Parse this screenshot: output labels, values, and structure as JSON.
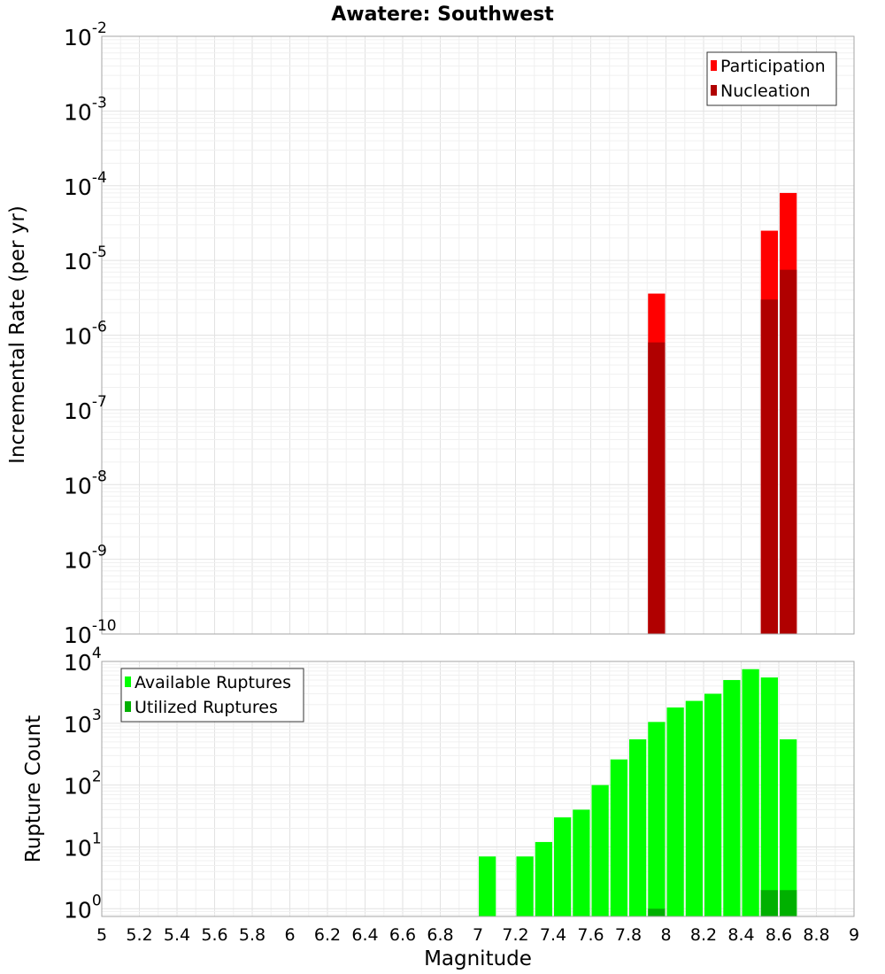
{
  "chart_data": [
    {
      "type": "bar",
      "title": "Awatere: Southwest",
      "xlabel": "",
      "ylabel": "Incremental Rate (per yr)",
      "yscale": "log",
      "ylim": [
        1e-10,
        0.01
      ],
      "y_tick_exponents": [
        -10,
        -9,
        -8,
        -7,
        -6,
        -5,
        -4,
        -3,
        -2
      ],
      "xlim": [
        5,
        9
      ],
      "grid": true,
      "legend_position": "top-right",
      "bin_width": 0.1,
      "series": [
        {
          "name": "Participation",
          "color": "#ff0000",
          "x": [
            7.95,
            8.55,
            8.65
          ],
          "values": [
            3.6e-06,
            2.5e-05,
            8e-05
          ]
        },
        {
          "name": "Nucleation",
          "color": "#b00000",
          "x": [
            7.95,
            8.55,
            8.65
          ],
          "values": [
            8e-07,
            3e-06,
            7.5e-06
          ]
        }
      ]
    },
    {
      "type": "bar",
      "xlabel": "Magnitude",
      "ylabel": "Rupture Count",
      "yscale": "log",
      "ylim": [
        0.75,
        10000
      ],
      "y_tick_exponents": [
        0,
        1,
        2,
        3,
        4
      ],
      "xlim": [
        5,
        9
      ],
      "x_ticks": [
        "5",
        "5.2",
        "5.4",
        "5.6",
        "5.8",
        "6",
        "6.2",
        "6.4",
        "6.6",
        "6.8",
        "7",
        "7.2",
        "7.4",
        "7.6",
        "7.8",
        "8",
        "8.2",
        "8.4",
        "8.6",
        "8.8",
        "9"
      ],
      "grid": true,
      "legend_position": "top-left",
      "bin_width": 0.1,
      "series": [
        {
          "name": "Available Ruptures",
          "color": "#00ff00",
          "x": [
            7.05,
            7.25,
            7.35,
            7.45,
            7.55,
            7.65,
            7.75,
            7.85,
            7.95,
            8.05,
            8.15,
            8.25,
            8.35,
            8.45,
            8.55,
            8.65
          ],
          "values": [
            7,
            7,
            12,
            30,
            40,
            100,
            260,
            550,
            1050,
            1800,
            2300,
            3000,
            5000,
            7500,
            5500,
            550
          ]
        },
        {
          "name": "Utilized Ruptures",
          "color": "#00b000",
          "x": [
            7.95,
            8.55,
            8.65
          ],
          "values": [
            1,
            2,
            2
          ]
        }
      ]
    }
  ]
}
